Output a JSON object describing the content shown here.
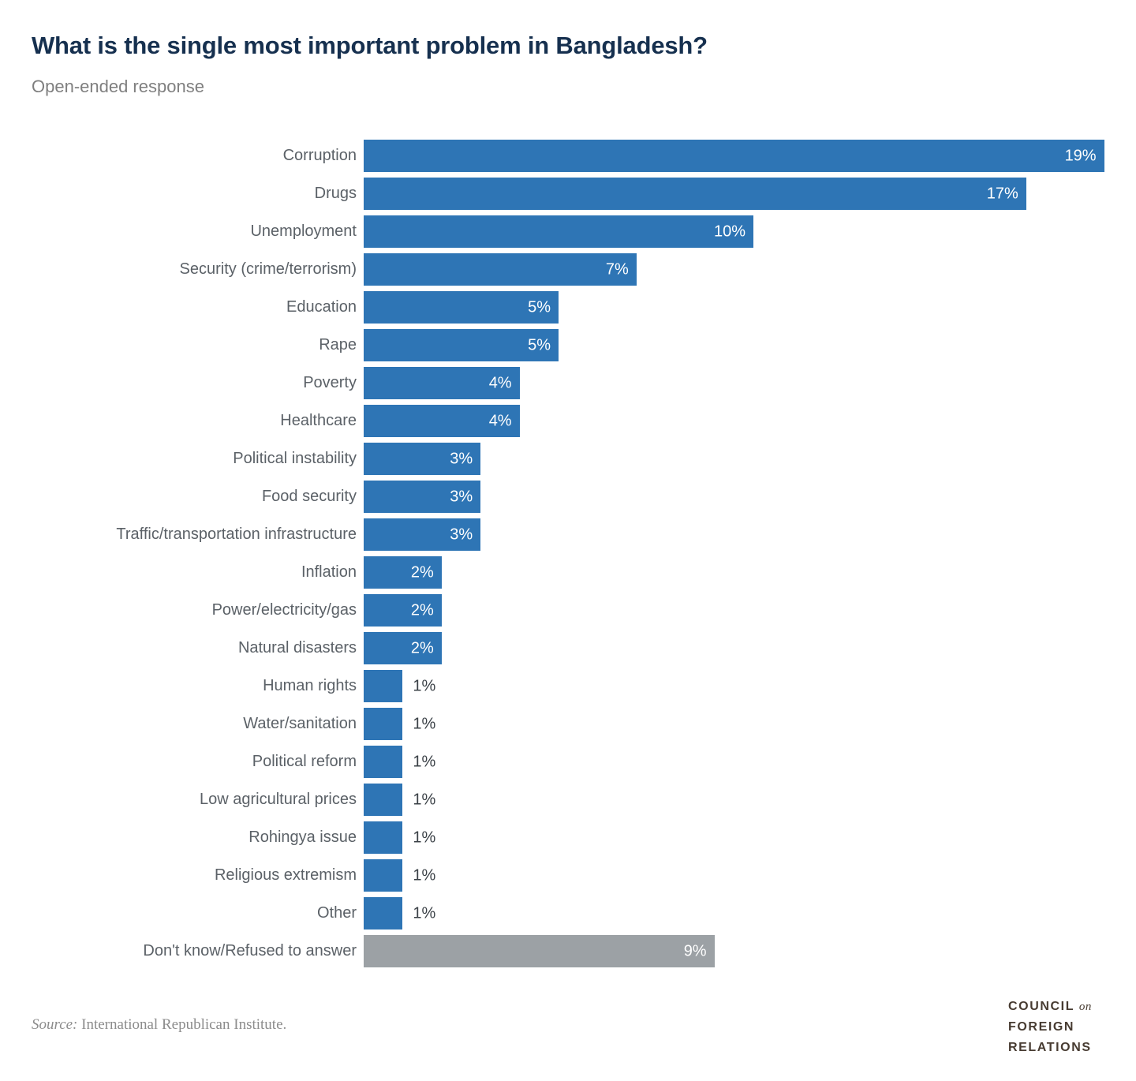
{
  "page": {
    "title": "What is the single most important problem in Bangladesh?",
    "subtitle": "Open-ended response",
    "source": {
      "label": "Source:",
      "text": "International Republican Institute."
    },
    "logo": {
      "line1_word": "COUNCIL",
      "line1_on": "on",
      "line2": "FOREIGN",
      "line3": "RELATIONS"
    }
  },
  "chart_data": {
    "type": "bar",
    "orientation": "horizontal",
    "title": "What is the single most important problem in Bangladesh?",
    "subtitle": "Open-ended response",
    "unit": "%",
    "xlim": [
      0,
      19
    ],
    "grid": false,
    "legend": "none",
    "colors": {
      "bar": "#2e75b5",
      "neutral": "#9ca1a5",
      "value_inside": "#ffffff",
      "value_outside": "#3a4046"
    },
    "categories": [
      "Corruption",
      "Drugs",
      "Unemployment",
      "Security (crime/terrorism)",
      "Education",
      "Rape",
      "Poverty",
      "Healthcare",
      "Political instability",
      "Food security",
      "Traffic/transportation infrastructure",
      "Inflation",
      "Power/electricity/gas",
      "Natural disasters",
      "Human rights",
      "Water/sanitation",
      "Political reform",
      "Low agricultural prices",
      "Rohingya issue",
      "Religious extremism",
      "Other",
      "Don't know/Refused to answer"
    ],
    "values": [
      19,
      17,
      10,
      7,
      5,
      5,
      4,
      4,
      3,
      3,
      3,
      2,
      2,
      2,
      1,
      1,
      1,
      1,
      1,
      1,
      1,
      9
    ],
    "rows": [
      {
        "label": "Corruption",
        "value": 19,
        "display": "19%",
        "color": "blue"
      },
      {
        "label": "Drugs",
        "value": 17,
        "display": "17%",
        "color": "blue"
      },
      {
        "label": "Unemployment",
        "value": 10,
        "display": "10%",
        "color": "blue"
      },
      {
        "label": "Security (crime/terrorism)",
        "value": 7,
        "display": "7%",
        "color": "blue"
      },
      {
        "label": "Education",
        "value": 5,
        "display": "5%",
        "color": "blue"
      },
      {
        "label": "Rape",
        "value": 5,
        "display": "5%",
        "color": "blue"
      },
      {
        "label": "Poverty",
        "value": 4,
        "display": "4%",
        "color": "blue"
      },
      {
        "label": "Healthcare",
        "value": 4,
        "display": "4%",
        "color": "blue"
      },
      {
        "label": "Political instability",
        "value": 3,
        "display": "3%",
        "color": "blue"
      },
      {
        "label": "Food security",
        "value": 3,
        "display": "3%",
        "color": "blue"
      },
      {
        "label": "Traffic/transportation infrastructure",
        "value": 3,
        "display": "3%",
        "color": "blue"
      },
      {
        "label": "Inflation",
        "value": 2,
        "display": "2%",
        "color": "blue"
      },
      {
        "label": "Power/electricity/gas",
        "value": 2,
        "display": "2%",
        "color": "blue"
      },
      {
        "label": "Natural disasters",
        "value": 2,
        "display": "2%",
        "color": "blue"
      },
      {
        "label": "Human rights",
        "value": 1,
        "display": "1%",
        "color": "blue"
      },
      {
        "label": "Water/sanitation",
        "value": 1,
        "display": "1%",
        "color": "blue"
      },
      {
        "label": "Political reform",
        "value": 1,
        "display": "1%",
        "color": "blue"
      },
      {
        "label": "Low agricultural prices",
        "value": 1,
        "display": "1%",
        "color": "blue"
      },
      {
        "label": "Rohingya issue",
        "value": 1,
        "display": "1%",
        "color": "blue"
      },
      {
        "label": "Religious extremism",
        "value": 1,
        "display": "1%",
        "color": "blue"
      },
      {
        "label": "Other",
        "value": 1,
        "display": "1%",
        "color": "blue"
      },
      {
        "label": "Don't know/Refused to answer",
        "value": 9,
        "display": "9%",
        "color": "neutral"
      }
    ]
  }
}
